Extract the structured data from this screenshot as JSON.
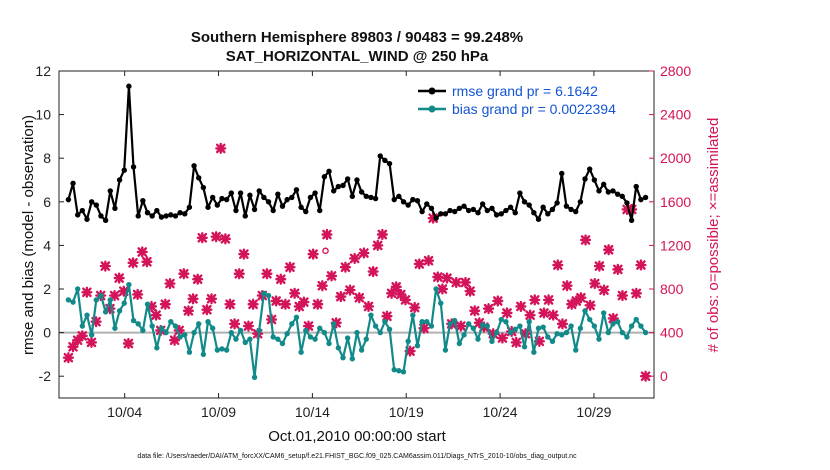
{
  "chart_data": {
    "type": "line",
    "title": "Southern Hemisphere 89803 / 90483 = 99.248%",
    "subtitle": "SAT_HORIZONTAL_WIND @ 250 hPa",
    "xlabel": "Oct.01,2010 00:00:00 start",
    "ylabel": "rmse and bias (model - observation)",
    "y2label": "# of obs: o=possible; ×=assimilated",
    "footer": "data file: /Users/raeder/DAI/ATM_forcXX/CAM6_setup/f.e21.FHIST_BGC.f09_025.CAM6assim.011/Diags_NTrS_2010-10/obs_diag_output.nc",
    "xlim": [
      0.5,
      32.2
    ],
    "ylim": [
      -3,
      12
    ],
    "y2lim": [
      -200,
      2800
    ],
    "x_ticks": [
      4,
      9,
      14,
      19,
      24,
      29
    ],
    "x_tick_labels": [
      "10/04",
      "10/09",
      "10/14",
      "10/19",
      "10/24",
      "10/29"
    ],
    "y_ticks": [
      -2,
      0,
      2,
      4,
      6,
      8,
      10,
      12
    ],
    "y_tick_labels": [
      "-2",
      "0",
      "2",
      "4",
      "6",
      "8",
      "10",
      "12"
    ],
    "y2_ticks": [
      0,
      400,
      800,
      1200,
      1600,
      2000,
      2400,
      2800
    ],
    "y2_tick_labels": [
      "0",
      "400",
      "800",
      "1200",
      "1600",
      "2000",
      "2400",
      "2800"
    ],
    "legend_position": "top-right",
    "colors": {
      "rmse": "#000000",
      "bias": "#138a8a",
      "obs": "#d4145a",
      "legend_text": "#1454d4",
      "zero_line": "#b0b0b0"
    },
    "series": [
      {
        "name": "rmse",
        "legend": "rmse grand pr = 6.1642",
        "values": [
          6.1,
          6.85,
          5.4,
          5.6,
          5.2,
          6.0,
          5.85,
          5.35,
          5.15,
          6.5,
          5.7,
          7.0,
          7.45,
          11.3,
          7.6,
          5.35,
          6.05,
          5.5,
          5.35,
          5.6,
          5.3,
          5.35,
          5.4,
          5.35,
          5.5,
          5.45,
          5.75,
          7.65,
          7.1,
          6.65,
          5.75,
          6.2,
          5.85,
          6.15,
          6.1,
          6.4,
          5.6,
          6.4,
          5.35,
          6.3,
          5.65,
          6.5,
          6.2,
          6.0,
          5.6,
          6.35,
          5.8,
          6.1,
          6.2,
          6.55,
          5.75,
          5.55,
          6.2,
          6.4,
          5.6,
          7.15,
          7.4,
          6.5,
          6.7,
          6.75,
          7.05,
          6.25,
          7.0,
          6.45,
          6.25,
          6.2,
          6.15,
          8.1,
          7.9,
          7.75,
          6.1,
          6.25,
          6.0,
          5.85,
          6.1,
          6.05,
          5.55,
          5.9,
          5.7,
          5.25,
          5.45,
          5.45,
          5.6,
          5.55,
          5.7,
          5.8,
          5.6,
          5.65,
          5.5,
          5.9,
          5.6,
          5.7,
          5.4,
          5.45,
          5.6,
          5.75,
          5.5,
          6.4,
          6.0,
          5.85,
          5.5,
          5.2,
          5.75,
          5.45,
          5.65,
          5.95,
          7.3,
          5.8,
          5.65,
          5.55,
          6.0,
          7.05,
          7.5,
          7.0,
          6.5,
          6.8,
          6.45,
          6.5,
          6.35,
          6.25,
          5.95,
          5.15,
          6.7,
          6.1,
          6.2
        ]
      },
      {
        "name": "bias",
        "legend": "bias grand pr = 0.0022394",
        "values": [
          1.5,
          1.4,
          2.0,
          0.3,
          0.8,
          -0.1,
          1.5,
          1.7,
          0.95,
          1.5,
          0.2,
          1.0,
          1.35,
          2.2,
          0.55,
          0.4,
          0.1,
          1.3,
          0.3,
          -0.7,
          0.2,
          0.0,
          0.5,
          0.3,
          -0.2,
          -0.1,
          -0.9,
          0.0,
          0.4,
          -1.0,
          0.5,
          0.2,
          -0.8,
          -0.75,
          -0.8,
          0.0,
          -0.3,
          0.1,
          -0.45,
          -0.3,
          -2.05,
          0.1,
          1.8,
          1.7,
          -0.2,
          -0.3,
          -0.5,
          -0.05,
          0.4,
          0.7,
          -0.9,
          0.1,
          -0.2,
          -0.3,
          0.2,
          0.0,
          -0.5,
          0.4,
          -0.7,
          -1.15,
          -0.25,
          -1.2,
          0.0,
          -0.8,
          -0.3,
          0.8,
          0.3,
          0.0,
          0.5,
          0.15,
          -1.7,
          -1.75,
          -1.8,
          -0.4,
          0.8,
          -0.6,
          0.5,
          0.5,
          0.3,
          2.0,
          1.35,
          -0.8,
          0.4,
          0.55,
          -0.5,
          -0.1,
          0.4,
          0.2,
          -0.3,
          0.35,
          0.3,
          -0.4,
          0.0,
          0.6,
          0.5,
          0.0,
          0.15,
          0.3,
          -0.65,
          0.5,
          -0.9,
          0.2,
          0.25,
          -0.2,
          -0.4,
          -0.05,
          -0.1,
          0.0,
          0.3,
          -0.8,
          0.2,
          1.0,
          0.6,
          0.3,
          -0.3,
          0.9,
          0.0,
          0.4,
          0.5,
          0.0,
          -0.2,
          0.3,
          0.6,
          0.3,
          0.0
        ]
      },
      {
        "name": "obs_possible_and_assimilated",
        "values": [
          170,
          270,
          330,
          370,
          770,
          310,
          500,
          740,
          1010,
          620,
          740,
          900,
          780,
          300,
          1040,
          750,
          1140,
          1050,
          640,
          560,
          420,
          660,
          850,
          330,
          420,
          940,
          600,
          710,
          890,
          1270,
          610,
          710,
          1280,
          2090,
          1260,
          660,
          480,
          940,
          1120,
          460,
          660,
          390,
          740,
          940,
          520,
          690,
          890,
          660,
          1000,
          760,
          640,
          680,
          460,
          1120,
          660,
          830,
          1300,
          920,
          490,
          730,
          1000,
          790,
          1080,
          720,
          1130,
          640,
          960,
          1200,
          1300,
          550,
          760,
          820,
          750,
          700,
          230,
          630,
          1030,
          440,
          1060,
          1450,
          910,
          800,
          900,
          480,
          860,
          460,
          860,
          780,
          600,
          490,
          450,
          620,
          390,
          690,
          350,
          580,
          410,
          310,
          640,
          390,
          560,
          700,
          320,
          580,
          700,
          560,
          1020,
          480,
          830,
          660,
          690,
          720,
          1250,
          650,
          850,
          1010,
          790,
          1160,
          530,
          980,
          740,
          1530,
          1530,
          760,
          1020,
          0
        ]
      }
    ],
    "obs_possible_marker": {
      "x": 14.7,
      "y2": 1150
    }
  }
}
